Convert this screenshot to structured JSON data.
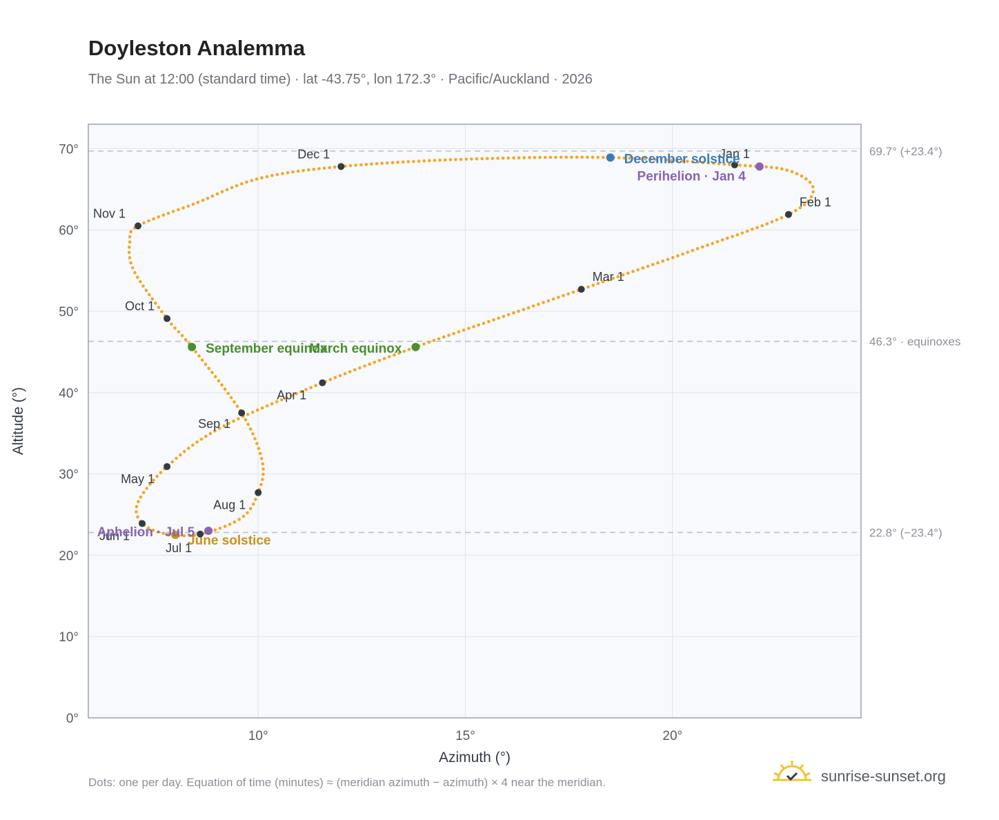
{
  "header": {
    "title": "Doyleston Analemma",
    "subtitle": "The Sun at 12:00 (standard time) · lat -43.75°, lon 172.3° · Pacific/Auckland · 2026"
  },
  "footer": {
    "note": "Dots: one per day. Equation of time (minutes) ≈ (meridian azimuth − azimuth) × 4 near the meridian.",
    "brand": "sunrise-sunset.org",
    "brand_icon": "sun-check-icon"
  },
  "chart_data": {
    "type": "scatter",
    "title": "Doyleston Analemma",
    "xlabel": "Azimuth (°)",
    "ylabel": "Altitude (°)",
    "xlim": [
      5.9,
      24.55
    ],
    "ylim": [
      0,
      73
    ],
    "xticks": [
      10,
      15,
      20
    ],
    "xtick_labels": [
      "10°",
      "15°",
      "20°"
    ],
    "yticks": [
      0,
      10,
      20,
      30,
      40,
      50,
      60,
      70
    ],
    "ytick_labels": [
      "0°",
      "10°",
      "20°",
      "30°",
      "40°",
      "50°",
      "60°",
      "70°"
    ],
    "grid": true,
    "colors": {
      "curve": "#f5a623",
      "month": "#343a44",
      "solstice_dec": "#3a7bbf",
      "solstice_jun": "#c8921a",
      "equinox": "#4a8f2e",
      "apsis": "#8a64b0",
      "reference": "#b9c1ca"
    },
    "path_anchors": [
      {
        "x": 21.5,
        "y": 68.0
      },
      {
        "x": 22.8,
        "y": 67.3
      },
      {
        "x": 23.4,
        "y": 65.0
      },
      {
        "x": 22.8,
        "y": 61.9
      },
      {
        "x": 20.5,
        "y": 57.5
      },
      {
        "x": 17.8,
        "y": 52.7
      },
      {
        "x": 16.0,
        "y": 49.5
      },
      {
        "x": 13.8,
        "y": 45.6
      },
      {
        "x": 11.55,
        "y": 41.2
      },
      {
        "x": 9.1,
        "y": 35.7
      },
      {
        "x": 7.8,
        "y": 30.9
      },
      {
        "x": 7.1,
        "y": 26.5
      },
      {
        "x": 7.2,
        "y": 23.9
      },
      {
        "x": 7.8,
        "y": 22.6
      },
      {
        "x": 8.6,
        "y": 22.6
      },
      {
        "x": 9.6,
        "y": 24.6
      },
      {
        "x": 10.0,
        "y": 27.7
      },
      {
        "x": 10.1,
        "y": 31.5
      },
      {
        "x": 9.6,
        "y": 37.5
      },
      {
        "x": 8.4,
        "y": 45.6
      },
      {
        "x": 7.8,
        "y": 49.1
      },
      {
        "x": 7.0,
        "y": 55.0
      },
      {
        "x": 6.9,
        "y": 58.5
      },
      {
        "x": 7.1,
        "y": 60.5
      },
      {
        "x": 8.5,
        "y": 63.3
      },
      {
        "x": 10.0,
        "y": 66.3
      },
      {
        "x": 12.0,
        "y": 67.8
      },
      {
        "x": 15.0,
        "y": 68.7
      },
      {
        "x": 18.5,
        "y": 68.9
      },
      {
        "x": 21.5,
        "y": 68.0
      }
    ],
    "month_markers": [
      {
        "label": "Jan 1",
        "x": 21.5,
        "y": 68.0
      },
      {
        "label": "Feb 1",
        "x": 22.8,
        "y": 61.9
      },
      {
        "label": "Mar 1",
        "x": 17.8,
        "y": 52.7
      },
      {
        "label": "Apr 1",
        "x": 11.55,
        "y": 41.2
      },
      {
        "label": "May 1",
        "x": 7.8,
        "y": 30.9
      },
      {
        "label": "Jun 1",
        "x": 7.2,
        "y": 23.9
      },
      {
        "label": "Jul 1",
        "x": 8.6,
        "y": 22.6
      },
      {
        "label": "Aug 1",
        "x": 10.0,
        "y": 27.7
      },
      {
        "label": "Sep 1",
        "x": 9.6,
        "y": 37.5
      },
      {
        "label": "Oct 1",
        "x": 7.8,
        "y": 49.1
      },
      {
        "label": "Nov 1",
        "x": 7.1,
        "y": 60.5
      },
      {
        "label": "Dec 1",
        "x": 12.0,
        "y": 67.8
      }
    ],
    "events": [
      {
        "label": "December solstice",
        "x": 18.5,
        "y": 68.9,
        "kind": "solstice_dec"
      },
      {
        "label": "Perihelion · Jan 4",
        "x": 22.1,
        "y": 67.8,
        "kind": "apsis"
      },
      {
        "label": "March equinox",
        "x": 13.8,
        "y": 45.6,
        "kind": "equinox"
      },
      {
        "label": "September equinox",
        "x": 8.4,
        "y": 45.6,
        "kind": "equinox"
      },
      {
        "label": "June solstice",
        "x": 8.0,
        "y": 22.5,
        "kind": "solstice_jun"
      },
      {
        "label": "Aphelion · Jul 5",
        "x": 8.8,
        "y": 23.0,
        "kind": "apsis"
      }
    ],
    "reference_lines": [
      {
        "y": 69.7,
        "label": "69.7° (+23.4°)"
      },
      {
        "y": 46.3,
        "label": "46.3° · equinoxes"
      },
      {
        "y": 22.8,
        "label": "22.8° (−23.4°)"
      }
    ]
  }
}
